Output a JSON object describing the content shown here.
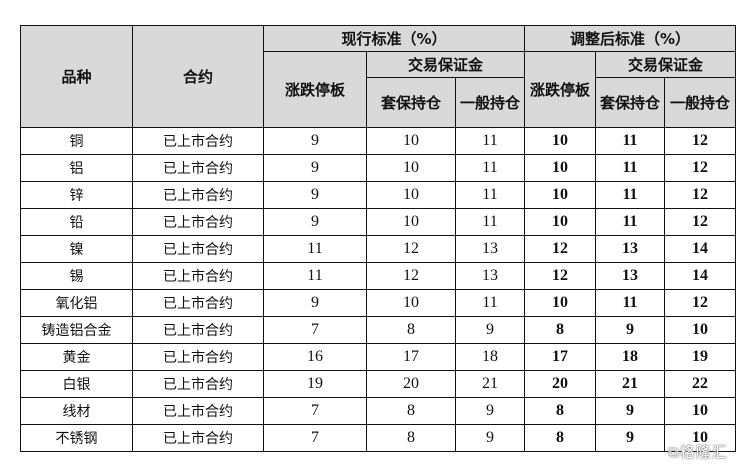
{
  "header": {
    "variety": "品种",
    "contract": "合约",
    "current": "现行标准（%）",
    "adjusted": "调整后标准（%）",
    "limit": "涨跌停板",
    "margin": "交易保证金",
    "hedge": "套保持仓",
    "general": "一般持仓",
    "limit_adj": "涨跌停板",
    "hedge_adj": "套保持仓",
    "general_adj": "一般持仓"
  },
  "rows": [
    {
      "variety": "铜",
      "contract": "已上市合约",
      "cur": [
        "9",
        "10",
        "11"
      ],
      "adj": [
        "10",
        "11",
        "12"
      ]
    },
    {
      "variety": "铝",
      "contract": "已上市合约",
      "cur": [
        "9",
        "10",
        "11"
      ],
      "adj": [
        "10",
        "11",
        "12"
      ]
    },
    {
      "variety": "锌",
      "contract": "已上市合约",
      "cur": [
        "9",
        "10",
        "11"
      ],
      "adj": [
        "10",
        "11",
        "12"
      ]
    },
    {
      "variety": "铅",
      "contract": "已上市合约",
      "cur": [
        "9",
        "10",
        "11"
      ],
      "adj": [
        "10",
        "11",
        "12"
      ]
    },
    {
      "variety": "镍",
      "contract": "已上市合约",
      "cur": [
        "11",
        "12",
        "13"
      ],
      "adj": [
        "12",
        "13",
        "14"
      ]
    },
    {
      "variety": "锡",
      "contract": "已上市合约",
      "cur": [
        "11",
        "12",
        "13"
      ],
      "adj": [
        "12",
        "13",
        "14"
      ]
    },
    {
      "variety": "氧化铝",
      "contract": "已上市合约",
      "cur": [
        "9",
        "10",
        "11"
      ],
      "adj": [
        "10",
        "11",
        "12"
      ]
    },
    {
      "variety": "铸造铝合金",
      "contract": "已上市合约",
      "cur": [
        "7",
        "8",
        "9"
      ],
      "adj": [
        "8",
        "9",
        "10"
      ]
    },
    {
      "variety": "黄金",
      "contract": "已上市合约",
      "cur": [
        "16",
        "17",
        "18"
      ],
      "adj": [
        "17",
        "18",
        "19"
      ]
    },
    {
      "variety": "白银",
      "contract": "已上市合约",
      "cur": [
        "19",
        "20",
        "21"
      ],
      "adj": [
        "20",
        "21",
        "22"
      ]
    },
    {
      "variety": "线材",
      "contract": "已上市合约",
      "cur": [
        "7",
        "8",
        "9"
      ],
      "adj": [
        "8",
        "9",
        "10"
      ]
    },
    {
      "variety": "不锈钢",
      "contract": "已上市合约",
      "cur": [
        "7",
        "8",
        "9"
      ],
      "adj": [
        "8",
        "9",
        "10"
      ]
    }
  ],
  "watermark": "格隆汇"
}
